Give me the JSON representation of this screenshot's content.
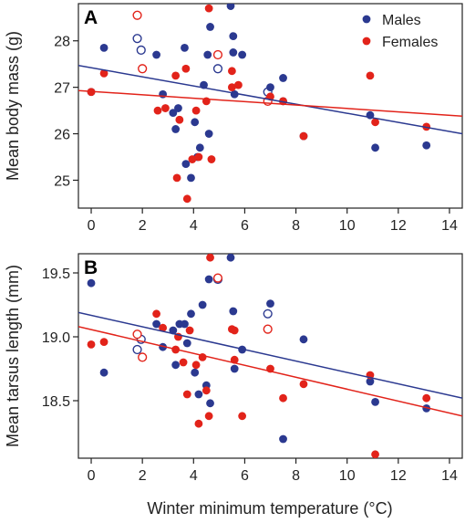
{
  "figure": {
    "xlabel": "Winter minimum temperature (°C)"
  },
  "colors": {
    "males": "#2b3990",
    "females": "#e2231a"
  },
  "legend": {
    "males_label": "Males",
    "females_label": "Females"
  },
  "chart_data": [
    {
      "panel": "A",
      "type": "scatter",
      "ylabel": "Mean body mass (g)",
      "xlim": [
        -0.5,
        14.5
      ],
      "ylim": [
        24.4,
        28.8
      ],
      "xticks": [
        0,
        2,
        4,
        6,
        8,
        10,
        12,
        14
      ],
      "yticks": [
        25,
        26,
        27,
        28
      ],
      "legend_position": "top-right",
      "series": [
        {
          "name": "Males",
          "color": "#2b3990",
          "points": [
            {
              "x": 0.0,
              "y": 26.9,
              "open": false
            },
            {
              "x": 0.5,
              "y": 27.85,
              "open": false
            },
            {
              "x": 1.8,
              "y": 28.05,
              "open": true
            },
            {
              "x": 1.95,
              "y": 27.8,
              "open": true
            },
            {
              "x": 2.55,
              "y": 27.7,
              "open": false
            },
            {
              "x": 2.8,
              "y": 26.85,
              "open": false
            },
            {
              "x": 3.2,
              "y": 26.45,
              "open": false
            },
            {
              "x": 3.3,
              "y": 26.1,
              "open": false
            },
            {
              "x": 3.4,
              "y": 26.55,
              "open": false
            },
            {
              "x": 3.65,
              "y": 27.85,
              "open": false
            },
            {
              "x": 3.7,
              "y": 25.35,
              "open": false
            },
            {
              "x": 3.9,
              "y": 25.05,
              "open": false
            },
            {
              "x": 4.05,
              "y": 26.25,
              "open": false
            },
            {
              "x": 4.15,
              "y": 25.5,
              "open": false
            },
            {
              "x": 4.25,
              "y": 25.7,
              "open": false
            },
            {
              "x": 4.4,
              "y": 27.05,
              "open": false
            },
            {
              "x": 4.55,
              "y": 27.7,
              "open": false
            },
            {
              "x": 4.6,
              "y": 26.0,
              "open": false
            },
            {
              "x": 4.65,
              "y": 28.3,
              "open": false
            },
            {
              "x": 4.95,
              "y": 27.4,
              "open": true
            },
            {
              "x": 5.45,
              "y": 28.75,
              "open": false
            },
            {
              "x": 5.55,
              "y": 28.1,
              "open": false
            },
            {
              "x": 5.55,
              "y": 27.75,
              "open": false
            },
            {
              "x": 5.6,
              "y": 26.85,
              "open": false
            },
            {
              "x": 5.9,
              "y": 27.7,
              "open": false
            },
            {
              "x": 6.9,
              "y": 26.9,
              "open": true
            },
            {
              "x": 7.0,
              "y": 27.0,
              "open": false
            },
            {
              "x": 7.5,
              "y": 27.2,
              "open": false
            },
            {
              "x": 7.5,
              "y": 26.7,
              "open": false
            },
            {
              "x": 8.3,
              "y": 25.95,
              "open": false
            },
            {
              "x": 10.9,
              "y": 26.4,
              "open": false
            },
            {
              "x": 11.1,
              "y": 25.7,
              "open": false
            },
            {
              "x": 13.1,
              "y": 25.75,
              "open": false
            }
          ],
          "fit_line": {
            "x": [
              -0.5,
              14.5
            ],
            "y": [
              27.47,
              26.0
            ]
          }
        },
        {
          "name": "Females",
          "color": "#e2231a",
          "points": [
            {
              "x": 0.0,
              "y": 26.9,
              "open": false
            },
            {
              "x": 0.5,
              "y": 27.3,
              "open": false
            },
            {
              "x": 1.8,
              "y": 28.55,
              "open": true
            },
            {
              "x": 2.0,
              "y": 27.4,
              "open": true
            },
            {
              "x": 2.6,
              "y": 26.5,
              "open": false
            },
            {
              "x": 2.9,
              "y": 26.55,
              "open": false
            },
            {
              "x": 3.3,
              "y": 27.25,
              "open": false
            },
            {
              "x": 3.35,
              "y": 25.05,
              "open": false
            },
            {
              "x": 3.45,
              "y": 26.3,
              "open": false
            },
            {
              "x": 3.7,
              "y": 27.4,
              "open": false
            },
            {
              "x": 3.75,
              "y": 24.6,
              "open": false
            },
            {
              "x": 3.95,
              "y": 25.45,
              "open": false
            },
            {
              "x": 4.1,
              "y": 26.5,
              "open": false
            },
            {
              "x": 4.2,
              "y": 25.5,
              "open": false
            },
            {
              "x": 4.5,
              "y": 26.7,
              "open": false
            },
            {
              "x": 4.6,
              "y": 28.7,
              "open": false
            },
            {
              "x": 4.7,
              "y": 25.45,
              "open": false
            },
            {
              "x": 4.95,
              "y": 27.7,
              "open": true
            },
            {
              "x": 5.5,
              "y": 27.35,
              "open": false
            },
            {
              "x": 5.5,
              "y": 27.0,
              "open": false
            },
            {
              "x": 5.75,
              "y": 27.05,
              "open": false
            },
            {
              "x": 6.9,
              "y": 26.7,
              "open": true
            },
            {
              "x": 7.0,
              "y": 26.8,
              "open": false
            },
            {
              "x": 7.5,
              "y": 26.7,
              "open": false
            },
            {
              "x": 8.3,
              "y": 25.95,
              "open": false
            },
            {
              "x": 10.9,
              "y": 27.25,
              "open": false
            },
            {
              "x": 11.1,
              "y": 26.25,
              "open": false
            },
            {
              "x": 13.1,
              "y": 26.15,
              "open": false
            }
          ],
          "fit_line": {
            "x": [
              -0.5,
              14.5
            ],
            "y": [
              26.93,
              26.38
            ]
          }
        }
      ]
    },
    {
      "panel": "B",
      "type": "scatter",
      "ylabel": "Mean tarsus length (mm)",
      "xlim": [
        -0.5,
        14.5
      ],
      "ylim": [
        18.05,
        19.65
      ],
      "xticks": [
        0,
        2,
        4,
        6,
        8,
        10,
        12,
        14
      ],
      "yticks": [
        18.5,
        19.0,
        19.5
      ],
      "ytick_labels": [
        "18.5",
        "19.0",
        "19.5"
      ],
      "series": [
        {
          "name": "Males",
          "color": "#2b3990",
          "points": [
            {
              "x": 0.0,
              "y": 19.42,
              "open": false
            },
            {
              "x": 0.5,
              "y": 18.72,
              "open": false
            },
            {
              "x": 1.8,
              "y": 18.9,
              "open": true
            },
            {
              "x": 1.95,
              "y": 18.98,
              "open": true
            },
            {
              "x": 2.55,
              "y": 19.1,
              "open": false
            },
            {
              "x": 2.8,
              "y": 18.92,
              "open": false
            },
            {
              "x": 3.2,
              "y": 19.05,
              "open": false
            },
            {
              "x": 3.3,
              "y": 18.78,
              "open": false
            },
            {
              "x": 3.45,
              "y": 19.1,
              "open": false
            },
            {
              "x": 3.65,
              "y": 19.1,
              "open": false
            },
            {
              "x": 3.75,
              "y": 18.95,
              "open": false
            },
            {
              "x": 3.9,
              "y": 19.18,
              "open": false
            },
            {
              "x": 4.05,
              "y": 18.72,
              "open": false
            },
            {
              "x": 4.2,
              "y": 18.55,
              "open": false
            },
            {
              "x": 4.35,
              "y": 19.25,
              "open": false
            },
            {
              "x": 4.5,
              "y": 18.62,
              "open": false
            },
            {
              "x": 4.6,
              "y": 19.45,
              "open": false
            },
            {
              "x": 4.65,
              "y": 18.48,
              "open": false
            },
            {
              "x": 4.95,
              "y": 19.45,
              "open": true
            },
            {
              "x": 5.45,
              "y": 19.62,
              "open": false
            },
            {
              "x": 5.55,
              "y": 19.2,
              "open": false
            },
            {
              "x": 5.6,
              "y": 18.75,
              "open": false
            },
            {
              "x": 5.9,
              "y": 18.9,
              "open": false
            },
            {
              "x": 6.9,
              "y": 19.18,
              "open": true
            },
            {
              "x": 7.0,
              "y": 19.26,
              "open": false
            },
            {
              "x": 7.5,
              "y": 18.2,
              "open": false
            },
            {
              "x": 8.3,
              "y": 18.98,
              "open": false
            },
            {
              "x": 10.9,
              "y": 18.65,
              "open": false
            },
            {
              "x": 11.1,
              "y": 18.49,
              "open": false
            },
            {
              "x": 13.1,
              "y": 18.44,
              "open": false
            }
          ],
          "fit_line": {
            "x": [
              -0.5,
              14.5
            ],
            "y": [
              19.19,
              18.52
            ]
          }
        },
        {
          "name": "Females",
          "color": "#e2231a",
          "points": [
            {
              "x": 0.0,
              "y": 18.94,
              "open": false
            },
            {
              "x": 0.5,
              "y": 18.96,
              "open": false
            },
            {
              "x": 1.8,
              "y": 19.02,
              "open": true
            },
            {
              "x": 2.0,
              "y": 18.84,
              "open": true
            },
            {
              "x": 2.55,
              "y": 19.18,
              "open": false
            },
            {
              "x": 2.8,
              "y": 19.07,
              "open": false
            },
            {
              "x": 3.3,
              "y": 18.9,
              "open": false
            },
            {
              "x": 3.4,
              "y": 19.0,
              "open": false
            },
            {
              "x": 3.6,
              "y": 18.8,
              "open": false
            },
            {
              "x": 3.75,
              "y": 18.55,
              "open": false
            },
            {
              "x": 3.85,
              "y": 19.05,
              "open": false
            },
            {
              "x": 4.1,
              "y": 18.78,
              "open": false
            },
            {
              "x": 4.2,
              "y": 18.32,
              "open": false
            },
            {
              "x": 4.35,
              "y": 18.84,
              "open": false
            },
            {
              "x": 4.5,
              "y": 18.58,
              "open": false
            },
            {
              "x": 4.6,
              "y": 18.38,
              "open": false
            },
            {
              "x": 4.65,
              "y": 19.62,
              "open": false
            },
            {
              "x": 4.95,
              "y": 19.46,
              "open": true
            },
            {
              "x": 5.5,
              "y": 19.06,
              "open": false
            },
            {
              "x": 5.6,
              "y": 19.05,
              "open": false
            },
            {
              "x": 5.6,
              "y": 18.82,
              "open": false
            },
            {
              "x": 5.9,
              "y": 18.38,
              "open": false
            },
            {
              "x": 6.9,
              "y": 19.06,
              "open": true
            },
            {
              "x": 7.0,
              "y": 18.75,
              "open": false
            },
            {
              "x": 7.5,
              "y": 18.52,
              "open": false
            },
            {
              "x": 8.3,
              "y": 18.63,
              "open": false
            },
            {
              "x": 10.9,
              "y": 18.7,
              "open": false
            },
            {
              "x": 11.1,
              "y": 18.08,
              "open": false
            },
            {
              "x": 13.1,
              "y": 18.52,
              "open": false
            }
          ],
          "fit_line": {
            "x": [
              -0.5,
              14.5
            ],
            "y": [
              19.08,
              18.38
            ]
          }
        }
      ]
    }
  ]
}
